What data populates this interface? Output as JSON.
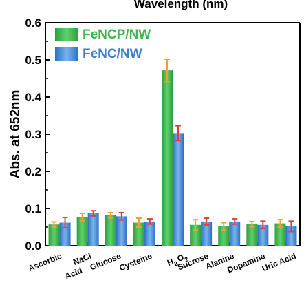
{
  "chart_data": {
    "type": "bar",
    "top_label": "Wavelength (nm)",
    "ylabel": "Abs. at 652nm",
    "ylim": [
      0,
      0.6
    ],
    "yticks": [
      "0.0",
      "0.1",
      "0.2",
      "0.3",
      "0.4",
      "0.5",
      "0.6"
    ],
    "categories": [
      "Ascorbic Acid",
      "NaCl",
      "Glucose",
      "Cysteine",
      "H2O2",
      "Sucrose",
      "Alanine",
      "Dopamine",
      "Uric Acid"
    ],
    "category_tick_labels": [
      {
        "text": "Ascorbic"
      },
      {
        "text": "Acid"
      },
      {
        "text": "NaCl"
      },
      {
        "text": "Glucose"
      },
      {
        "text": "Cysteine"
      },
      {
        "text": "H",
        "sub": "2",
        "text2": "O",
        "sub2": "2"
      },
      {
        "text": "Sucrose"
      },
      {
        "text": "Alanine"
      },
      {
        "text": "Dopamine"
      },
      {
        "text": "Uric Acid"
      }
    ],
    "series": [
      {
        "name": "FeNCP/NW",
        "color": "#3cb54a",
        "error_color": "#f0a030",
        "values": [
          0.057,
          0.077,
          0.082,
          0.062,
          0.472,
          0.056,
          0.052,
          0.058,
          0.06
        ],
        "errors": [
          0.007,
          0.01,
          0.007,
          0.012,
          0.03,
          0.014,
          0.01,
          0.007,
          0.01
        ]
      },
      {
        "name": "FeNC/NW",
        "color": "#3d7fd0",
        "error_color": "#e23b3b",
        "values": [
          0.062,
          0.087,
          0.079,
          0.065,
          0.303,
          0.065,
          0.065,
          0.056,
          0.052
        ],
        "errors": [
          0.014,
          0.007,
          0.01,
          0.007,
          0.02,
          0.009,
          0.007,
          0.01,
          0.014
        ]
      }
    ],
    "legend_position": "top-left",
    "grid": false
  }
}
